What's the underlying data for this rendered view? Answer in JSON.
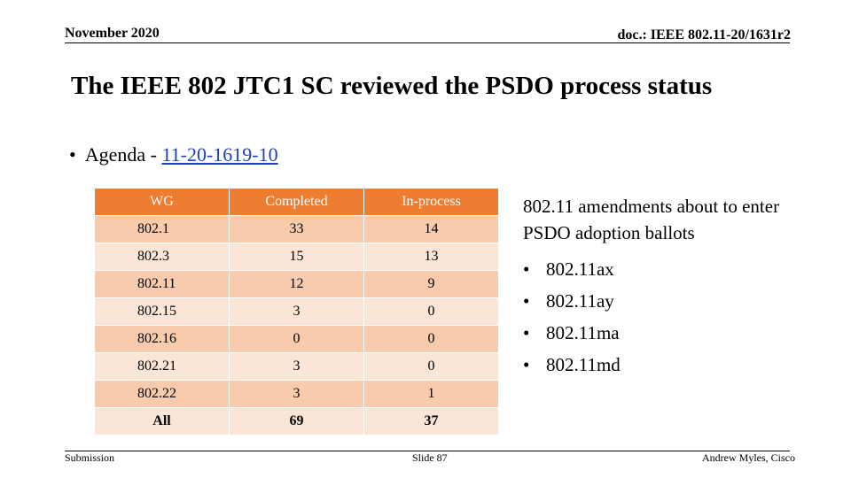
{
  "header": {
    "date": "November 2020",
    "doc_id": "doc.: IEEE 802.11-20/1631r2"
  },
  "title": "The IEEE 802 JTC1 SC reviewed the PSDO process status",
  "agenda": {
    "bullet": "•",
    "prefix": "Agenda - ",
    "link_text": "11-20-1619-10"
  },
  "table": {
    "headers": [
      "WG",
      "Completed",
      "In-process"
    ],
    "rows": [
      {
        "wg": "802.1",
        "completed": "33",
        "in_process": "14"
      },
      {
        "wg": "802.3",
        "completed": "15",
        "in_process": "13"
      },
      {
        "wg": "802.11",
        "completed": "12",
        "in_process": "9"
      },
      {
        "wg": "802.15",
        "completed": "3",
        "in_process": "0"
      },
      {
        "wg": "802.16",
        "completed": "0",
        "in_process": "0"
      },
      {
        "wg": "802.21",
        "completed": "3",
        "in_process": "0"
      },
      {
        "wg": "802.22",
        "completed": "3",
        "in_process": "1"
      }
    ],
    "total": {
      "wg": "All",
      "completed": "69",
      "in_process": "37"
    },
    "colors": {
      "header": "#ed7d31",
      "row_dark": "#f8cbad",
      "row_light": "#fbe5d6"
    }
  },
  "side_text": {
    "intro": "802.11 amendments about to enter PSDO adoption ballots",
    "items": [
      "802.11ax",
      "802.11ay",
      "802.11ma",
      "802.11md"
    ]
  },
  "footer": {
    "left": "Submission",
    "center": "Slide 87",
    "right": "Andrew Myles, Cisco"
  }
}
